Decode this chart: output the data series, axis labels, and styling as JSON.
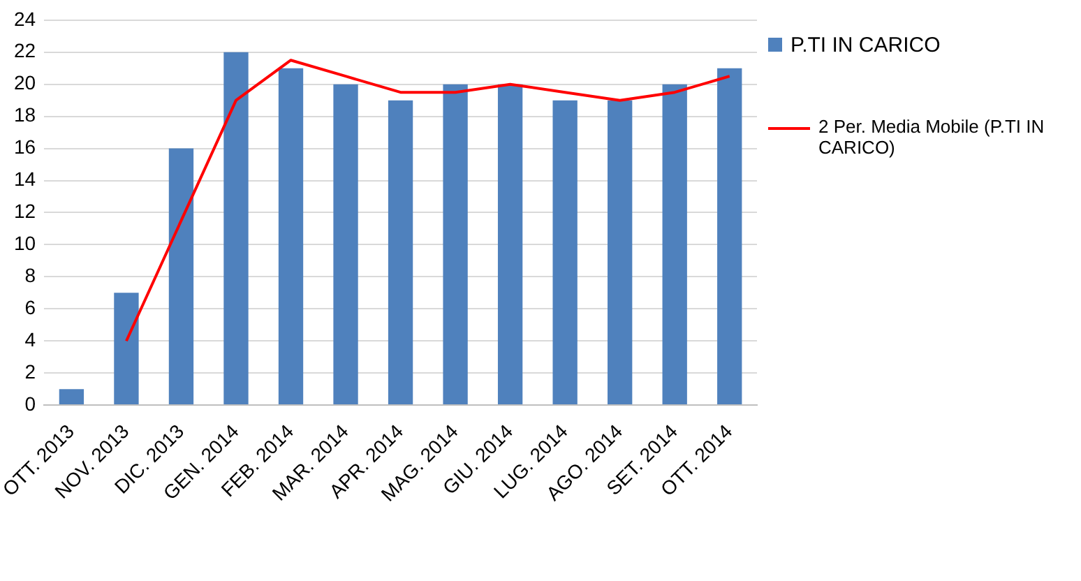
{
  "chart_data": {
    "type": "bar",
    "categories": [
      "OTT. 2013",
      "NOV. 2013",
      "DIC. 2013",
      "GEN. 2014",
      "FEB. 2014",
      "MAR. 2014",
      "APR. 2014",
      "MAG. 2014",
      "GIU. 2014",
      "LUG. 2014",
      "AGO. 2014",
      "SET. 2014",
      "OTT. 2014"
    ],
    "series": [
      {
        "name": "P.TI IN CARICO",
        "color": "#4f81bd",
        "values": [
          1,
          7,
          16,
          22,
          21,
          20,
          19,
          20,
          20,
          19,
          19,
          20,
          21
        ]
      },
      {
        "name": "2 Per. Media Mobile (P.TI IN CARICO)",
        "type": "line",
        "color": "#ff0000",
        "values": [
          null,
          4,
          11.5,
          19,
          21.5,
          20.5,
          19.5,
          19.5,
          20,
          19.5,
          19,
          19.5,
          20.5
        ]
      }
    ],
    "ylim": [
      0,
      24
    ],
    "yticks": [
      0,
      2,
      4,
      6,
      8,
      10,
      12,
      14,
      16,
      18,
      20,
      22,
      24
    ],
    "grid": "y",
    "legend": "right",
    "marker": "none",
    "line_style": "solid"
  }
}
